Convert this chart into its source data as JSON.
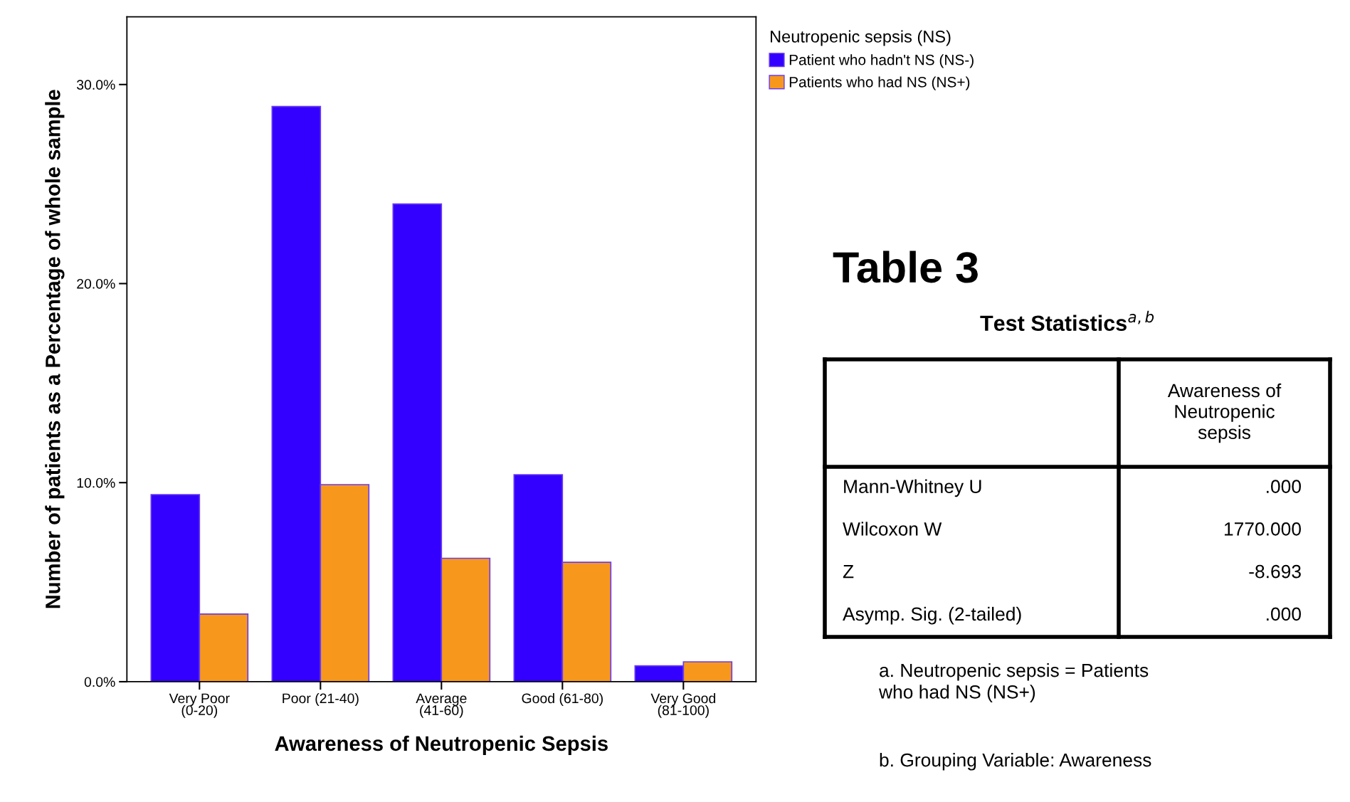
{
  "chart_data": [
    {
      "type": "bar",
      "xlabel": "Awareness of Neutropenic Sepsis",
      "ylabel": "Number of patients as a Percentage of whole sample",
      "legend_title": "Neutropenic sepsis (NS)",
      "categories": [
        "Very Poor (0-20)",
        "Poor (21-40)",
        "Average (41-60)",
        "Good (61-80)",
        "Very Good (81-100)"
      ],
      "series": [
        {
          "name": "Patient who hadn't NS (NS-)",
          "color": "#3300ff",
          "values": [
            9.4,
            28.9,
            24.0,
            10.4,
            0.8
          ]
        },
        {
          "name": "Patients who had NS (NS+)",
          "color": "#f7981d",
          "values": [
            3.4,
            9.9,
            6.2,
            6.0,
            1.0
          ]
        }
      ],
      "ylim": [
        0,
        33.4
      ],
      "yticks": [
        {
          "value": 0,
          "label": "0.0%"
        },
        {
          "value": 10,
          "label": "10.0%"
        },
        {
          "value": 20,
          "label": "20.0%"
        },
        {
          "value": 30,
          "label": "30.0%"
        }
      ],
      "grid": false,
      "legend": "top right"
    },
    {
      "type": "other",
      "title": "Table 3",
      "subtitle": "Test Statistics$^{a,b}$",
      "xlabel": "Awareness of Neutropenic sepsis",
      "categories": [
        "Mann-Whitney U",
        "Wilcoxon W",
        "Z",
        "Asymp. Sig. (2-tailed)"
      ],
      "value_labels": [
        ".000",
        "1770.000",
        "-8.693",
        ".000"
      ],
      "annotations": [
        "a. Neutropenic sepsis = Patients who had NS (NS+)",
        "b. Grouping Variable: Awareness"
      ]
    }
  ]
}
